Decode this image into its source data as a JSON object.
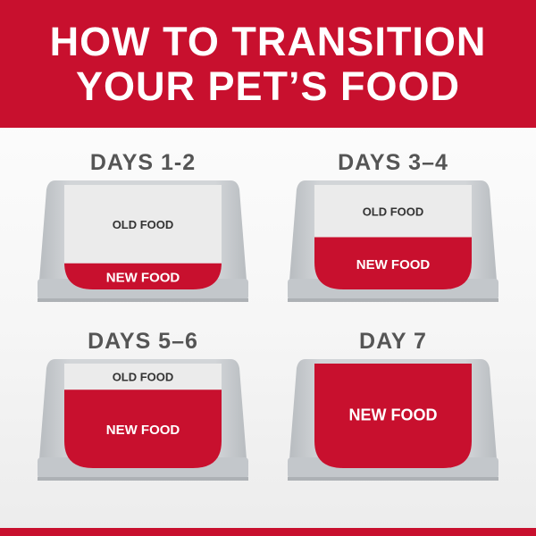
{
  "header": {
    "line1": "HOW TO TRANSITION",
    "line2": "YOUR PET’S FOOD"
  },
  "colors": {
    "brand_red": "#c8102e",
    "bowl_gray": "#c9cdd0",
    "old_food": "#ebebeb"
  },
  "stages": [
    {
      "title": "DAYS 1-2",
      "old_label": "OLD FOOD",
      "new_label": "NEW FOOD",
      "new_fraction": 0.25
    },
    {
      "title": "DAYS 3–4",
      "old_label": "OLD FOOD",
      "new_label": "NEW FOOD",
      "new_fraction": 0.5
    },
    {
      "title": "DAYS 5–6",
      "old_label": "OLD FOOD",
      "new_label": "NEW FOOD",
      "new_fraction": 0.75
    },
    {
      "title": "DAY 7",
      "old_label": "",
      "new_label": "NEW FOOD",
      "new_fraction": 1.0
    }
  ]
}
